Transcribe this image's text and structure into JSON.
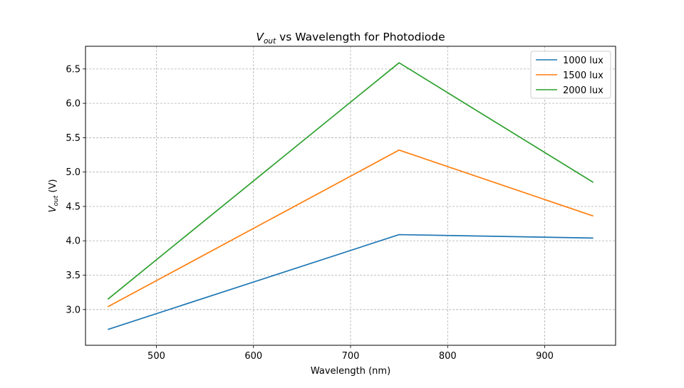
{
  "chart_data": {
    "type": "line",
    "title": {
      "main": "V",
      "sub": "out",
      "rest": " vs Wavelength for Photodiode"
    },
    "xlabel": "Wavelength (nm)",
    "ylabel": {
      "main": "V",
      "sub": "out",
      "rest": " (V)"
    },
    "x": [
      450,
      750,
      950
    ],
    "xlim": [
      427,
      973
    ],
    "ylim": [
      2.48,
      6.83
    ],
    "xticks": [
      500,
      600,
      700,
      800,
      900
    ],
    "xtick_labels": [
      "500",
      "600",
      "700",
      "800",
      "900"
    ],
    "yticks": [
      3.0,
      3.5,
      4.0,
      4.5,
      5.0,
      5.5,
      6.0,
      6.5
    ],
    "ytick_labels": [
      "3.0",
      "3.5",
      "4.0",
      "4.5",
      "5.0",
      "5.5",
      "6.0",
      "6.5"
    ],
    "grid": true,
    "legend_position": "top-right",
    "series": [
      {
        "name": "1000 lux",
        "color": "#1f77b4",
        "values": [
          2.71,
          4.09,
          4.04
        ]
      },
      {
        "name": "1500 lux",
        "color": "#ff7f0e",
        "values": [
          3.04,
          5.32,
          4.36
        ]
      },
      {
        "name": "2000 lux",
        "color": "#2ca02c",
        "values": [
          3.15,
          6.59,
          4.85
        ]
      }
    ]
  }
}
